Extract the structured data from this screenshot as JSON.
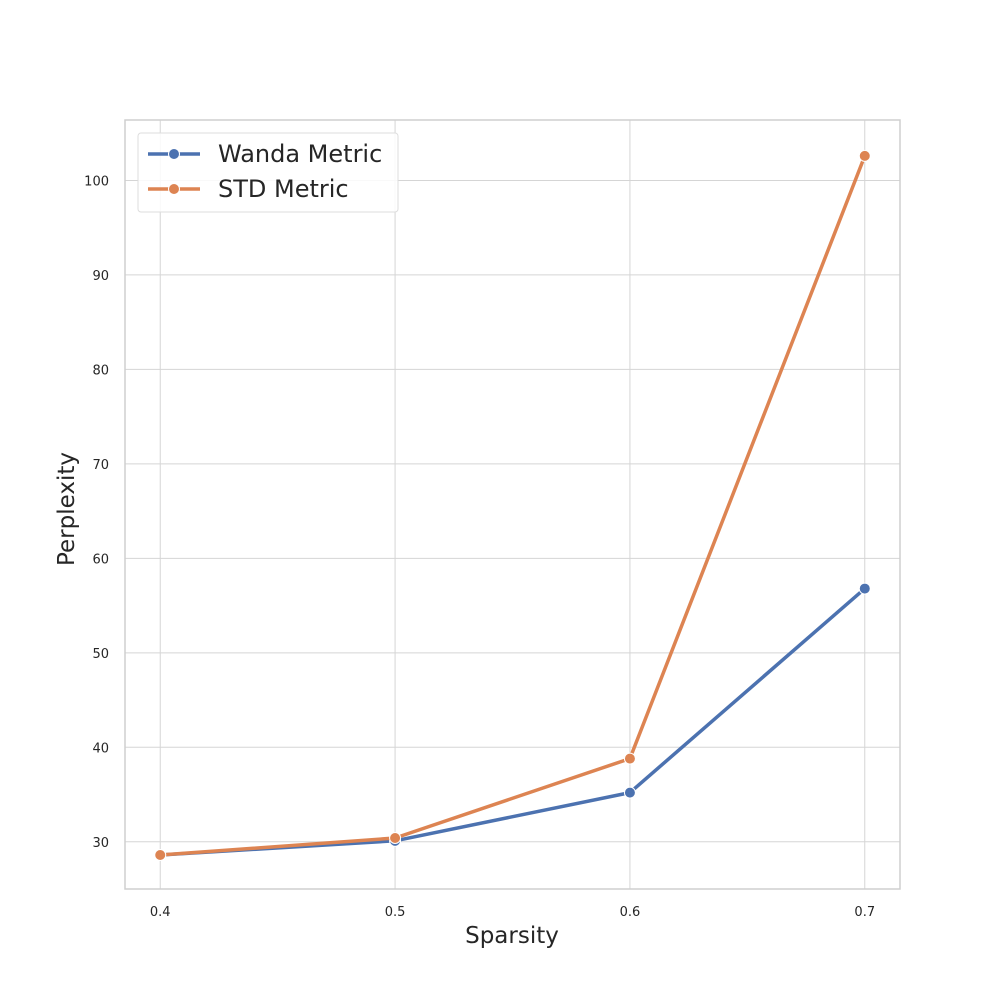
{
  "chart_data": {
    "type": "line",
    "xlabel": "Sparsity",
    "ylabel": "Perplexity",
    "x": [
      0.4,
      0.5,
      0.6,
      0.7
    ],
    "x_ticks": [
      "0.4",
      "0.5",
      "0.6",
      "0.7"
    ],
    "y_ticks": [
      "30",
      "40",
      "50",
      "60",
      "70",
      "80",
      "90",
      "100"
    ],
    "xlim": [
      0.385,
      0.715
    ],
    "ylim": [
      25,
      106.4
    ],
    "grid": true,
    "legend_position": "top-left",
    "series": [
      {
        "name": "Wanda Metric",
        "color": "#4c72b0",
        "values": [
          28.6,
          30.1,
          35.2,
          56.8
        ]
      },
      {
        "name": "STD Metric",
        "color": "#dd8452",
        "values": [
          28.6,
          30.4,
          38.8,
          102.6
        ]
      }
    ]
  }
}
